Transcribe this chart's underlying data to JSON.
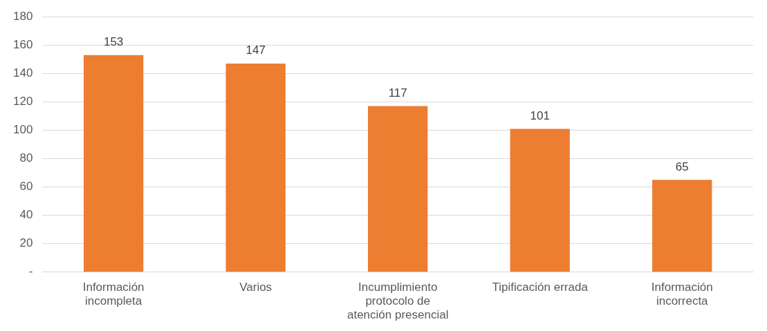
{
  "chart_data": {
    "type": "bar",
    "categories": [
      "Información incompleta",
      "Varios",
      "Incumplimiento protocolo de atención presencial",
      "Tipificación errada",
      "Información incorrecta"
    ],
    "values": [
      153,
      147,
      117,
      101,
      65
    ],
    "color": "#ed7d31",
    "ylim": [
      0,
      180
    ],
    "yticks": [
      {
        "value": 0,
        "label": "-"
      },
      20,
      40,
      60,
      80,
      100,
      120,
      140,
      160,
      180
    ],
    "grid": "y",
    "data_labels": true,
    "legend": false
  }
}
